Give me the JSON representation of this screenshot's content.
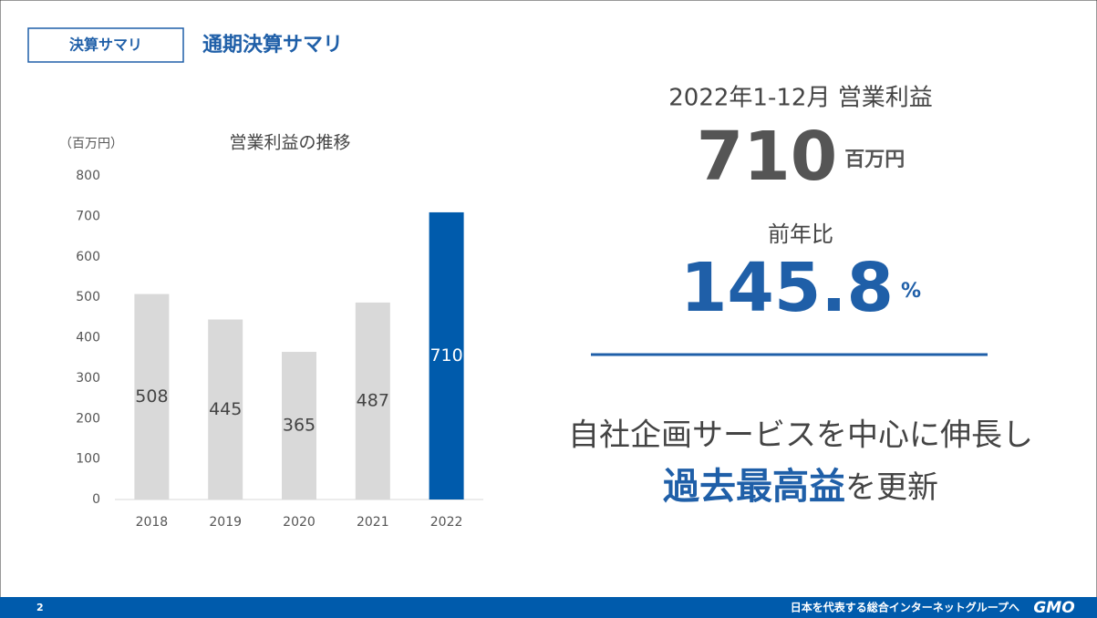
{
  "header": {
    "tag": "決算サマリ",
    "title": "通期決算サマリ"
  },
  "chart_data": {
    "type": "bar",
    "title": "営業利益の推移",
    "y_unit": "（百万円）",
    "categories": [
      "2018",
      "2019",
      "2020",
      "2021",
      "2022"
    ],
    "values": [
      508,
      445,
      365,
      487,
      710
    ],
    "colors": [
      "#d9d9d9",
      "#d9d9d9",
      "#d9d9d9",
      "#d9d9d9",
      "#005bac"
    ],
    "ylim": [
      0,
      800
    ],
    "yticks": [
      0,
      100,
      200,
      300,
      400,
      500,
      600,
      700,
      800
    ],
    "grid": false
  },
  "kpi": {
    "period_label": "2022年1-12月 営業利益",
    "profit": 710,
    "profit_unit": "百万円",
    "yoy_label": "前年比",
    "yoy": 145.8,
    "yoy_unit": "%"
  },
  "message": {
    "line1": "自社企画サービスを中心に伸長し",
    "highlight": "過去最高益",
    "rest": "を更新"
  },
  "footer": {
    "page": "2",
    "slogan": "日本を代表する総合インターネットグループへ",
    "logo": "GMO"
  }
}
